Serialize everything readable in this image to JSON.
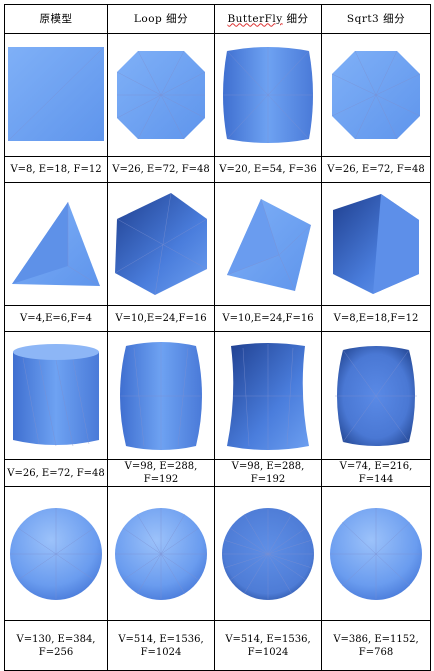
{
  "headers": [
    {
      "label": "原模型"
    },
    {
      "label": "Loop 细分"
    },
    {
      "label": "ButterFly 细分",
      "word": "ButterFly",
      "rest": " 细分"
    },
    {
      "label": "Sqrt3 细分"
    }
  ],
  "rows": [
    {
      "stats": [
        "V=8, E=18, F=12",
        "V=26, E=72, F=48",
        "V=20, E=54, F=36",
        "V=26, E=72, F=48"
      ]
    },
    {
      "stats": [
        "V=4,E=6,F=4",
        "V=10,E=24,F=16",
        "V=10,E=24,F=16",
        "V=8,E=18,F=12"
      ]
    },
    {
      "stats": [
        "V=26, E=72, F=48",
        "V=98, E=288, F=192",
        "V=98, E=288, F=192",
        "V=74, E=216, F=144"
      ]
    },
    {
      "stats": [
        "V=130, E=384, F=256",
        "V=514, E=1536, F=1024",
        "V=514, E=1536, F=1024",
        "V=386, E=1152, F=768"
      ]
    }
  ],
  "colors": {
    "mesh_light": "#8fb6f5",
    "mesh_mid": "#5a8ee8",
    "mesh_dark": "#2a4fa0",
    "wire": "#7d8fcf"
  }
}
